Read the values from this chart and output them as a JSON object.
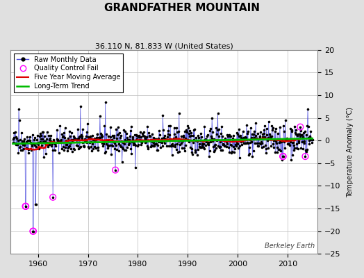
{
  "title": "GRANDFATHER MOUNTAIN",
  "subtitle": "36.110 N, 81.833 W (United States)",
  "ylabel": "Temperature Anomaly (°C)",
  "watermark": "Berkeley Earth",
  "ylim": [
    -25,
    20
  ],
  "xlim": [
    1954.5,
    2016
  ],
  "yticks": [
    -25,
    -20,
    -15,
    -10,
    -5,
    0,
    5,
    10,
    15,
    20
  ],
  "xticks": [
    1960,
    1970,
    1980,
    1990,
    2000,
    2010
  ],
  "bg_color": "#e0e0e0",
  "plot_bg_color": "#ffffff",
  "grid_color": "#bbbbbb",
  "raw_line_color": "#4444dd",
  "raw_dot_color": "#000000",
  "qc_fail_color": "#ff00ff",
  "moving_avg_color": "#dd0000",
  "trend_color": "#00bb00",
  "seed": 42,
  "start_year": 1955,
  "end_year": 2015
}
